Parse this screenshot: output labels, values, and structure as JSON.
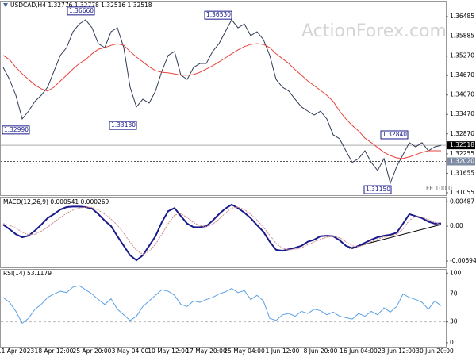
{
  "title": "USDCAD,H4 1.32776 1.32778 1.32516 1.32518",
  "watermark": "ActionForex.com",
  "chart_data": [
    {
      "type": "line",
      "ylim": [
        1.3098,
        1.3695
      ],
      "yticks": [
        1.36485,
        1.35885,
        {
          "value": 1.3527,
          "label": "1.35270"
        },
        {
          "value": 1.3467,
          "label": "1.34670"
        },
        {
          "value": 1.3407,
          "label": "1.34070"
        },
        {
          "value": 1.3347,
          "label": "1.33470"
        },
        {
          "value": 1.3287,
          "label": "1.32870"
        },
        1.32255,
        1.31655,
        1.31055
      ],
      "grid": false,
      "current_price": 1.32518,
      "level": {
        "value": 1.3202,
        "label": "1.32020"
      },
      "annotations": [
        {
          "value": 1.3666,
          "label": "1.36660"
        },
        {
          "value": 1.3653,
          "label": "1.36530"
        },
        {
          "value": 1.3299,
          "label": "1.32990"
        },
        {
          "value": 1.3313,
          "label": "1.33130"
        },
        {
          "value": 1.3284,
          "label": "1.32840"
        },
        {
          "value": 1.3115,
          "label": "1.31150"
        }
      ],
      "annotation_text": "FE 100.0",
      "series": [
        {
          "color": "#2f3b55",
          "values": [
            1.3492,
            1.3455,
            1.3406,
            1.3333,
            1.3357,
            1.3387,
            1.3406,
            1.3431,
            1.348,
            1.3529,
            1.3553,
            1.3602,
            1.3626,
            1.3639,
            1.3614,
            1.3565,
            1.3553,
            1.3602,
            1.3614,
            1.3553,
            1.3431,
            1.337,
            1.3394,
            1.3382,
            1.3419,
            1.348,
            1.3529,
            1.3541,
            1.3468,
            1.3455,
            1.3492,
            1.3504,
            1.3504,
            1.3541,
            1.3565,
            1.3602,
            1.3639,
            1.3614,
            1.3626,
            1.359,
            1.3602,
            1.3578,
            1.3529,
            1.3455,
            1.3431,
            1.3419,
            1.3394,
            1.337,
            1.3357,
            1.3345,
            1.3357,
            1.3333,
            1.3284,
            1.3272,
            1.3235,
            1.3199,
            1.3211,
            1.3235,
            1.3199,
            1.3174,
            1.3211,
            1.3135,
            1.3186,
            1.3223,
            1.326,
            1.3247,
            1.326,
            1.3235,
            1.3247,
            1.32518
          ]
        },
        {
          "color": "#e8413c",
          "values": [
            1.3529,
            1.3516,
            1.3492,
            1.3472,
            1.3455,
            1.3438,
            1.3426,
            1.3419,
            1.3431,
            1.345,
            1.3468,
            1.3487,
            1.3504,
            1.3516,
            1.3534,
            1.3548,
            1.3553,
            1.356,
            1.3565,
            1.356,
            1.3541,
            1.3524,
            1.3509,
            1.3494,
            1.3482,
            1.3477,
            1.3475,
            1.3472,
            1.3468,
            1.3468,
            1.347,
            1.3477,
            1.3487,
            1.3497,
            1.3509,
            1.3521,
            1.3534,
            1.3546,
            1.3556,
            1.3563,
            1.3565,
            1.3563,
            1.3553,
            1.3534,
            1.3519,
            1.3504,
            1.3485,
            1.3468,
            1.345,
            1.3436,
            1.3421,
            1.3406,
            1.3387,
            1.3357,
            1.3333,
            1.3313,
            1.3296,
            1.3274,
            1.326,
            1.3245,
            1.323,
            1.322,
            1.3213,
            1.3211,
            1.3216,
            1.3223,
            1.323,
            1.3235,
            1.3235,
            1.3235
          ]
        }
      ]
    },
    {
      "type": "line",
      "title": "MACD(12,26,9) 0.000541 0.000269",
      "ylim": [
        -0.0082,
        0.0057
      ],
      "yticks": [
        0.00487,
        {
          "value": 0,
          "label": "0.00"
        },
        -0.006945
      ],
      "grid": false,
      "series": [
        {
          "color": "#1a1a8c",
          "values": [
            0.0003,
            -0.0006,
            -0.0016,
            -0.0022,
            -0.0019,
            -0.0009,
            0.0003,
            0.0016,
            0.0024,
            0.0033,
            0.0038,
            0.0039,
            0.0039,
            0.0038,
            0.0035,
            0.0024,
            0.0011,
            0,
            -0.002,
            -0.0039,
            -0.0058,
            -0.0068,
            -0.0058,
            -0.0039,
            -0.002,
            0.0008,
            0.003,
            0.0036,
            0.002,
            0.0005,
            -0.0002,
            -0.0002,
            0,
            0.0011,
            0.0024,
            0.0035,
            0.0043,
            0.0036,
            0.0027,
            0.0016,
            0.0002,
            -0.0011,
            -0.0031,
            -0.0047,
            -0.0049,
            -0.0046,
            -0.0043,
            -0.0039,
            -0.0031,
            -0.0027,
            -0.002,
            -0.0019,
            -0.002,
            -0.0028,
            -0.0039,
            -0.0044,
            -0.0039,
            -0.0033,
            -0.0027,
            -0.0022,
            -0.0019,
            -0.0017,
            -0.0013,
            0.0005,
            0.0024,
            0.002,
            0.0016,
            0.0009,
            0.0005,
            0.000541
          ]
        },
        {
          "color": "#d08a8a",
          "values": [
            0.0005,
            0.0002,
            -0.0004,
            -0.0012,
            -0.0017,
            -0.0016,
            -0.001,
            -0.0002,
            0.0008,
            0.0017,
            0.0026,
            0.0032,
            0.0036,
            0.0038,
            0.0037,
            0.0032,
            0.0024,
            0.0014,
            0.0002,
            -0.0014,
            -0.0032,
            -0.0048,
            -0.0056,
            -0.005,
            -0.0036,
            -0.0016,
            0.0005,
            0.0022,
            0.0025,
            0.0017,
            0.0007,
            0.0001,
            -0.0001,
            0.0004,
            0.0014,
            0.0026,
            0.0036,
            0.0038,
            0.0033,
            0.0024,
            0.0012,
            -0.0002,
            -0.0018,
            -0.0034,
            -0.0044,
            -0.0047,
            -0.0046,
            -0.0043,
            -0.0037,
            -0.0031,
            -0.0026,
            -0.0022,
            -0.002,
            -0.0023,
            -0.0031,
            -0.0039,
            -0.0041,
            -0.0037,
            -0.0031,
            -0.0026,
            -0.0022,
            -0.0019,
            -0.0016,
            -0.0006,
            0.0012,
            0.0019,
            0.0018,
            0.0013,
            0.0008,
            0.000269
          ]
        }
      ]
    },
    {
      "type": "line",
      "title": "RSI(14) 53.1179",
      "ylim": [
        -7,
        106
      ],
      "yticks": [
        100,
        70,
        30,
        0
      ],
      "grid": true,
      "categories": [
        null,
        null,
        "11 Apr 2023",
        null,
        null,
        null,
        null,
        null,
        "18 Apr 12:00",
        null,
        null,
        null,
        null,
        null,
        "25 Apr 20:00",
        null,
        null,
        null,
        null,
        null,
        "3 May 04:00",
        null,
        null,
        null,
        null,
        null,
        "10 May 12:00",
        null,
        null,
        null,
        null,
        null,
        "17 May 20:00",
        null,
        null,
        null,
        null,
        null,
        "25 May 04:00",
        null,
        null,
        null,
        null,
        null,
        "1 Jun 12:00",
        null,
        null,
        null,
        null,
        null,
        "8 Jun 20:00",
        null,
        null,
        null,
        null,
        null,
        "16 Jun 04:00",
        null,
        null,
        null,
        null,
        null,
        "23 Jun 12:00",
        null,
        null,
        null,
        null,
        null,
        "30 Jun 20:00",
        null
      ],
      "series": [
        {
          "color": "#5aa0e6",
          "values": [
            65,
            58,
            45,
            28,
            35,
            48,
            55,
            65,
            70,
            74,
            72,
            80,
            82,
            76,
            70,
            62,
            55,
            63,
            48,
            40,
            32,
            38,
            52,
            60,
            68,
            76,
            74,
            68,
            55,
            52,
            60,
            58,
            62,
            65,
            70,
            73,
            78,
            72,
            75,
            62,
            68,
            60,
            35,
            32,
            40,
            42,
            38,
            45,
            42,
            48,
            46,
            40,
            44,
            38,
            36,
            34,
            42,
            38,
            45,
            40,
            50,
            44,
            52,
            70,
            65,
            62,
            58,
            48,
            60,
            53.1179
          ]
        }
      ]
    }
  ]
}
